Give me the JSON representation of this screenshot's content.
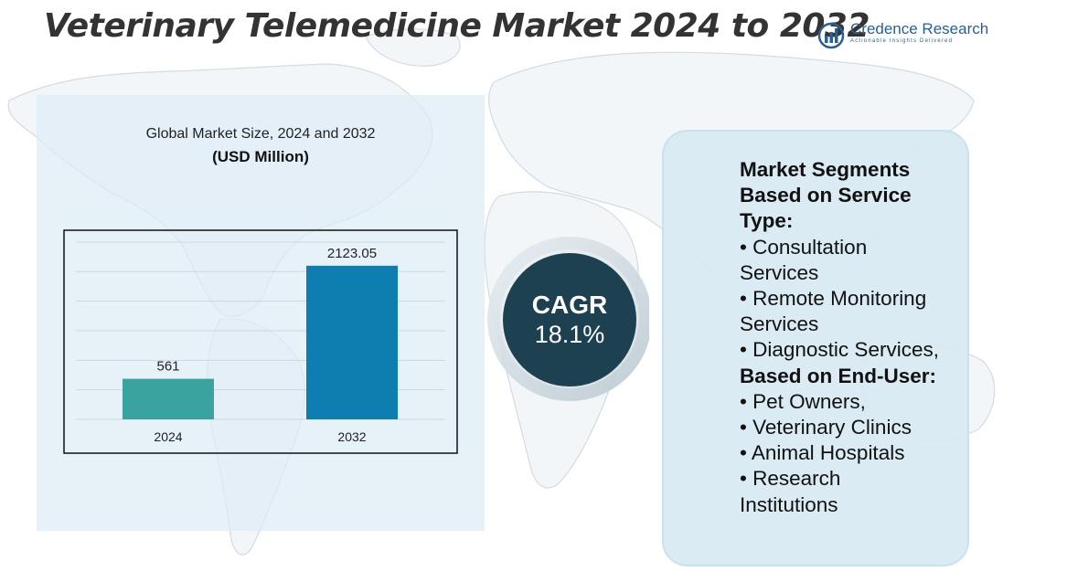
{
  "header": {
    "title": "Veterinary Telemedicine Market 2024 to 2032",
    "logo_name": "Credence Research",
    "logo_tagline": "Actionable Insights Delivered"
  },
  "chart": {
    "heading": "Global Market Size, 2024 and 2032",
    "unit": "(USD Million)"
  },
  "chart_data": {
    "type": "bar",
    "categories": [
      "2024",
      "2032"
    ],
    "values": [
      561,
      2123.05
    ],
    "value_labels": [
      "561",
      "2123.05"
    ],
    "colors": [
      "#3aa39f",
      "#0e7eb0"
    ],
    "title": "Global Market Size, 2024 and 2032",
    "ylabel": "",
    "xlabel": "",
    "ylim": [
      0,
      2500
    ],
    "grid": true,
    "legend": "none"
  },
  "cagr": {
    "label": "CAGR",
    "value": "18.1%"
  },
  "segments": {
    "lines": [
      {
        "text": "Market Segments",
        "bold": true
      },
      {
        "text": "Based on Service",
        "bold": true
      },
      {
        "text": "Type:",
        "bold": true
      },
      {
        "text": "• Consultation",
        "bold": false
      },
      {
        "text": "Services",
        "bold": false
      },
      {
        "text": "• Remote Monitoring",
        "bold": false
      },
      {
        "text": "Services",
        "bold": false
      },
      {
        "text": "• Diagnostic Services,",
        "bold": false
      },
      {
        "text": "Based on End-User:",
        "bold": true
      },
      {
        "text": "• Pet Owners,",
        "bold": false
      },
      {
        "text": "• Veterinary Clinics",
        "bold": false
      },
      {
        "text": "• Animal Hospitals",
        "bold": false
      },
      {
        "text": "• Research",
        "bold": false
      },
      {
        "text": "Institutions",
        "bold": false
      }
    ]
  },
  "colors": {
    "title": "#333333",
    "panel": "#deecf5",
    "cagr_circle": "#1d4150",
    "logo": "#2a5f93"
  }
}
